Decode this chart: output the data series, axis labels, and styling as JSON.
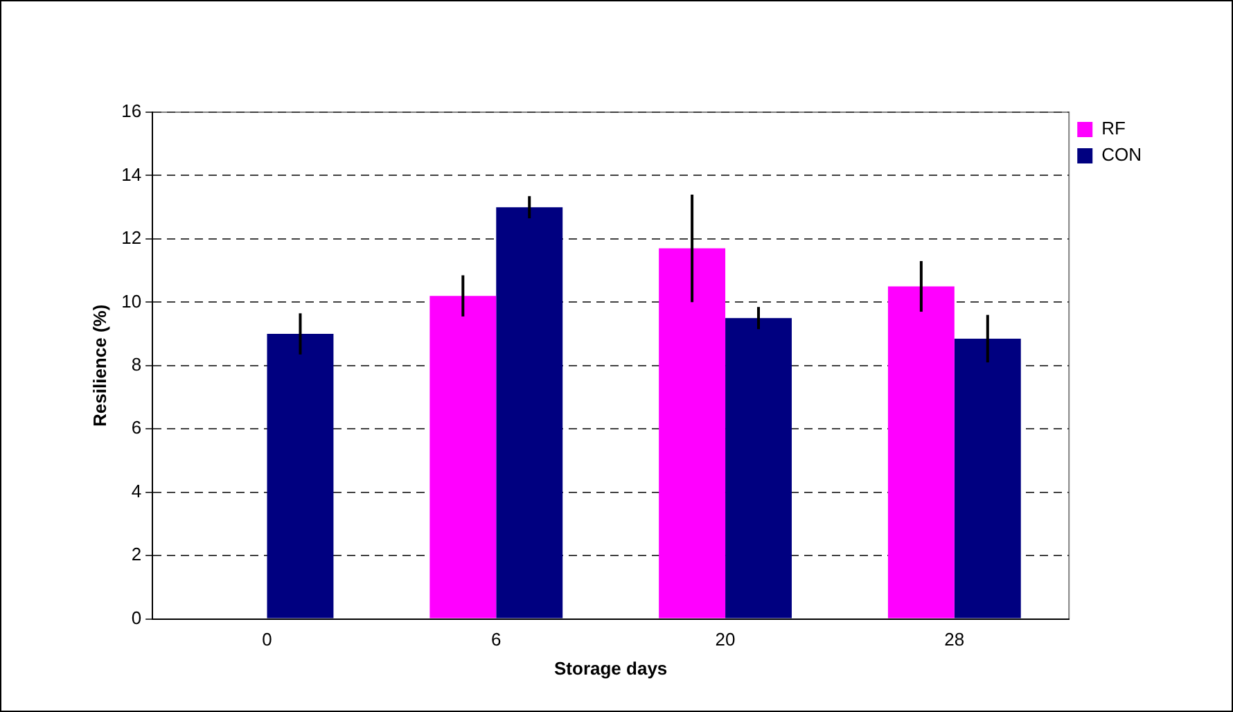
{
  "chart_data": {
    "type": "bar",
    "xlabel": "Storage days",
    "ylabel": "Resilience (%)",
    "categories": [
      "0",
      "6",
      "20",
      "28"
    ],
    "series": [
      {
        "name": "RF",
        "color": "#ff00ff",
        "values": [
          null,
          10.2,
          11.7,
          10.5
        ],
        "errors": [
          null,
          0.65,
          1.7,
          0.8
        ]
      },
      {
        "name": "CON",
        "color": "#000080",
        "values": [
          9.0,
          13.0,
          9.5,
          8.85
        ],
        "errors": [
          0.65,
          0.35,
          0.35,
          0.75
        ]
      }
    ],
    "ylim": [
      0,
      16
    ],
    "yticks": [
      0,
      2,
      4,
      6,
      8,
      10,
      12,
      14,
      16
    ],
    "grid": "y",
    "legend": "top right"
  }
}
